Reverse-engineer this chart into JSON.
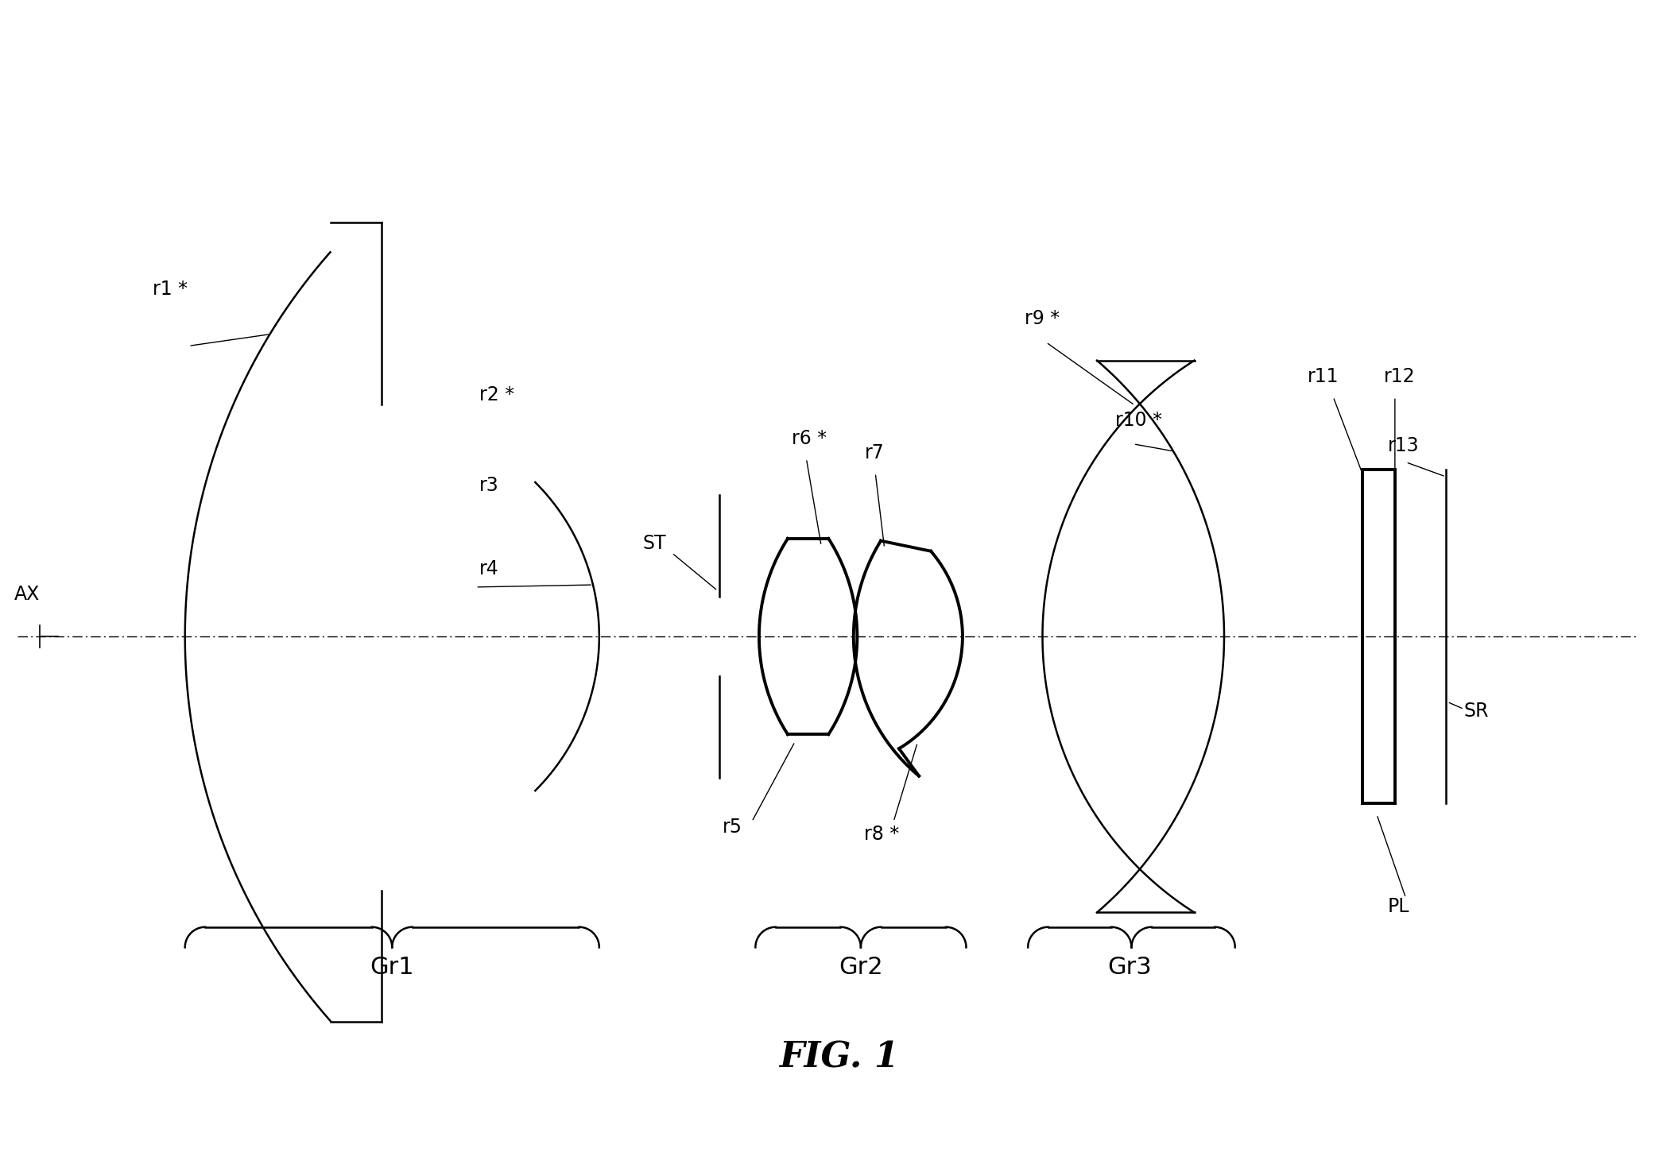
{
  "background_color": "#ffffff",
  "title": "FIG. 1",
  "figsize": [
    21.11,
    14.65
  ],
  "dpi": 100,
  "xlim": [
    -2.0,
    21.0
  ],
  "ylim": [
    -6.5,
    8.0
  ],
  "optical_axis_y": 0.0,
  "lw": 1.8,
  "lw_thick": 2.8,
  "fontsize_label": 17,
  "fontsize_group": 22,
  "fontsize_title": 32
}
